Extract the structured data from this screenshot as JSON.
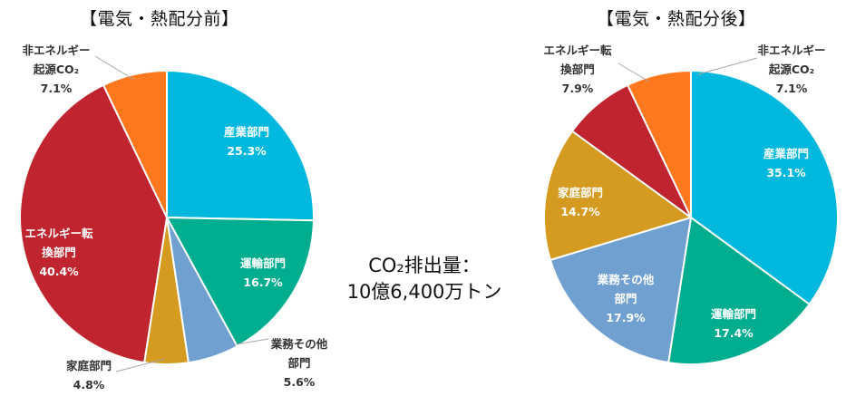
{
  "total": {
    "label": "CO₂排出量：",
    "value": "10億6,400万トン"
  },
  "chart_data": [
    {
      "type": "pie",
      "title": "【電気・熱配分前】",
      "slices": [
        {
          "key": "industry",
          "label_lines": [
            "産業部門"
          ],
          "value": 25.3,
          "value_label": "25.3%",
          "color": "#00B8DE"
        },
        {
          "key": "transport",
          "label_lines": [
            "運輸部門"
          ],
          "value": 16.7,
          "value_label": "16.7%",
          "color": "#00AD8E"
        },
        {
          "key": "commercial",
          "label_lines": [
            "業務その他",
            "部門"
          ],
          "value": 5.6,
          "value_label": "5.6%",
          "color": "#70A0D0"
        },
        {
          "key": "household",
          "label_lines": [
            "家庭部門"
          ],
          "value": 4.8,
          "value_label": "4.8%",
          "color": "#D49B20"
        },
        {
          "key": "energy",
          "label_lines": [
            "エネルギー転",
            "換部門"
          ],
          "value": 40.4,
          "value_label": "40.4%",
          "color": "#C0242E"
        },
        {
          "key": "nonenergy",
          "label_lines": [
            "非エネルギー",
            "起源CO₂"
          ],
          "value": 7.1,
          "value_label": "7.1%",
          "color": "#FF781E"
        }
      ]
    },
    {
      "type": "pie",
      "title": "【電気・熱配分後】",
      "slices": [
        {
          "key": "industry",
          "label_lines": [
            "産業部門"
          ],
          "value": 35.1,
          "value_label": "35.1%",
          "color": "#00B8DE"
        },
        {
          "key": "transport",
          "label_lines": [
            "運輸部門"
          ],
          "value": 17.4,
          "value_label": "17.4%",
          "color": "#00AD8E"
        },
        {
          "key": "commercial",
          "label_lines": [
            "業務その他",
            "部門"
          ],
          "value": 17.9,
          "value_label": "17.9%",
          "color": "#70A0D0"
        },
        {
          "key": "household",
          "label_lines": [
            "家庭部門"
          ],
          "value": 14.7,
          "value_label": "14.7%",
          "color": "#D49B20"
        },
        {
          "key": "energy",
          "label_lines": [
            "エネルギー転",
            "換部門"
          ],
          "value": 7.9,
          "value_label": "7.9%",
          "color": "#C0242E"
        },
        {
          "key": "nonenergy",
          "label_lines": [
            "非エネルギー",
            "起源CO₂"
          ],
          "value": 7.1,
          "value_label": "7.1%",
          "color": "#FF781E"
        }
      ]
    }
  ]
}
